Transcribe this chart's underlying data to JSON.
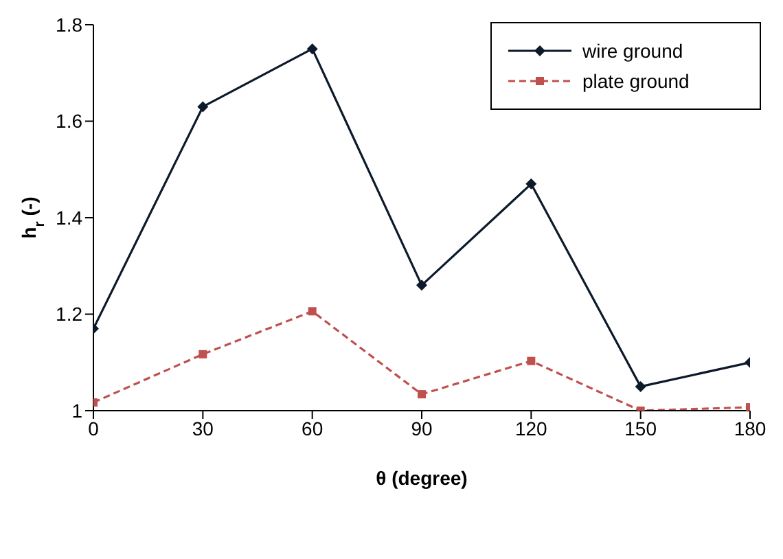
{
  "chart_data": {
    "type": "line",
    "xlabel": "θ (degree)",
    "ylabel": "h$_{r}$ (-)",
    "x": [
      0,
      30,
      60,
      90,
      120,
      150,
      180
    ],
    "series": [
      {
        "name": "wire ground",
        "color": "#0d1a2b",
        "marker": "diamond",
        "line_style": "solid",
        "values": [
          1.17,
          1.63,
          1.75,
          1.26,
          1.47,
          1.05,
          1.1
        ]
      },
      {
        "name": "plate ground",
        "color": "#c0504d",
        "marker": "square",
        "line_style": "dashed",
        "values": [
          1.017,
          1.117,
          1.206,
          1.034,
          1.103,
          1.0,
          1.007
        ]
      }
    ],
    "xlim": [
      0,
      180
    ],
    "xticks": [
      0,
      30,
      60,
      90,
      120,
      150,
      180
    ],
    "ylim": [
      1,
      1.8
    ],
    "yticks": [
      1,
      1.2,
      1.4,
      1.6,
      1.8
    ],
    "grid": false,
    "legend": "top right"
  }
}
